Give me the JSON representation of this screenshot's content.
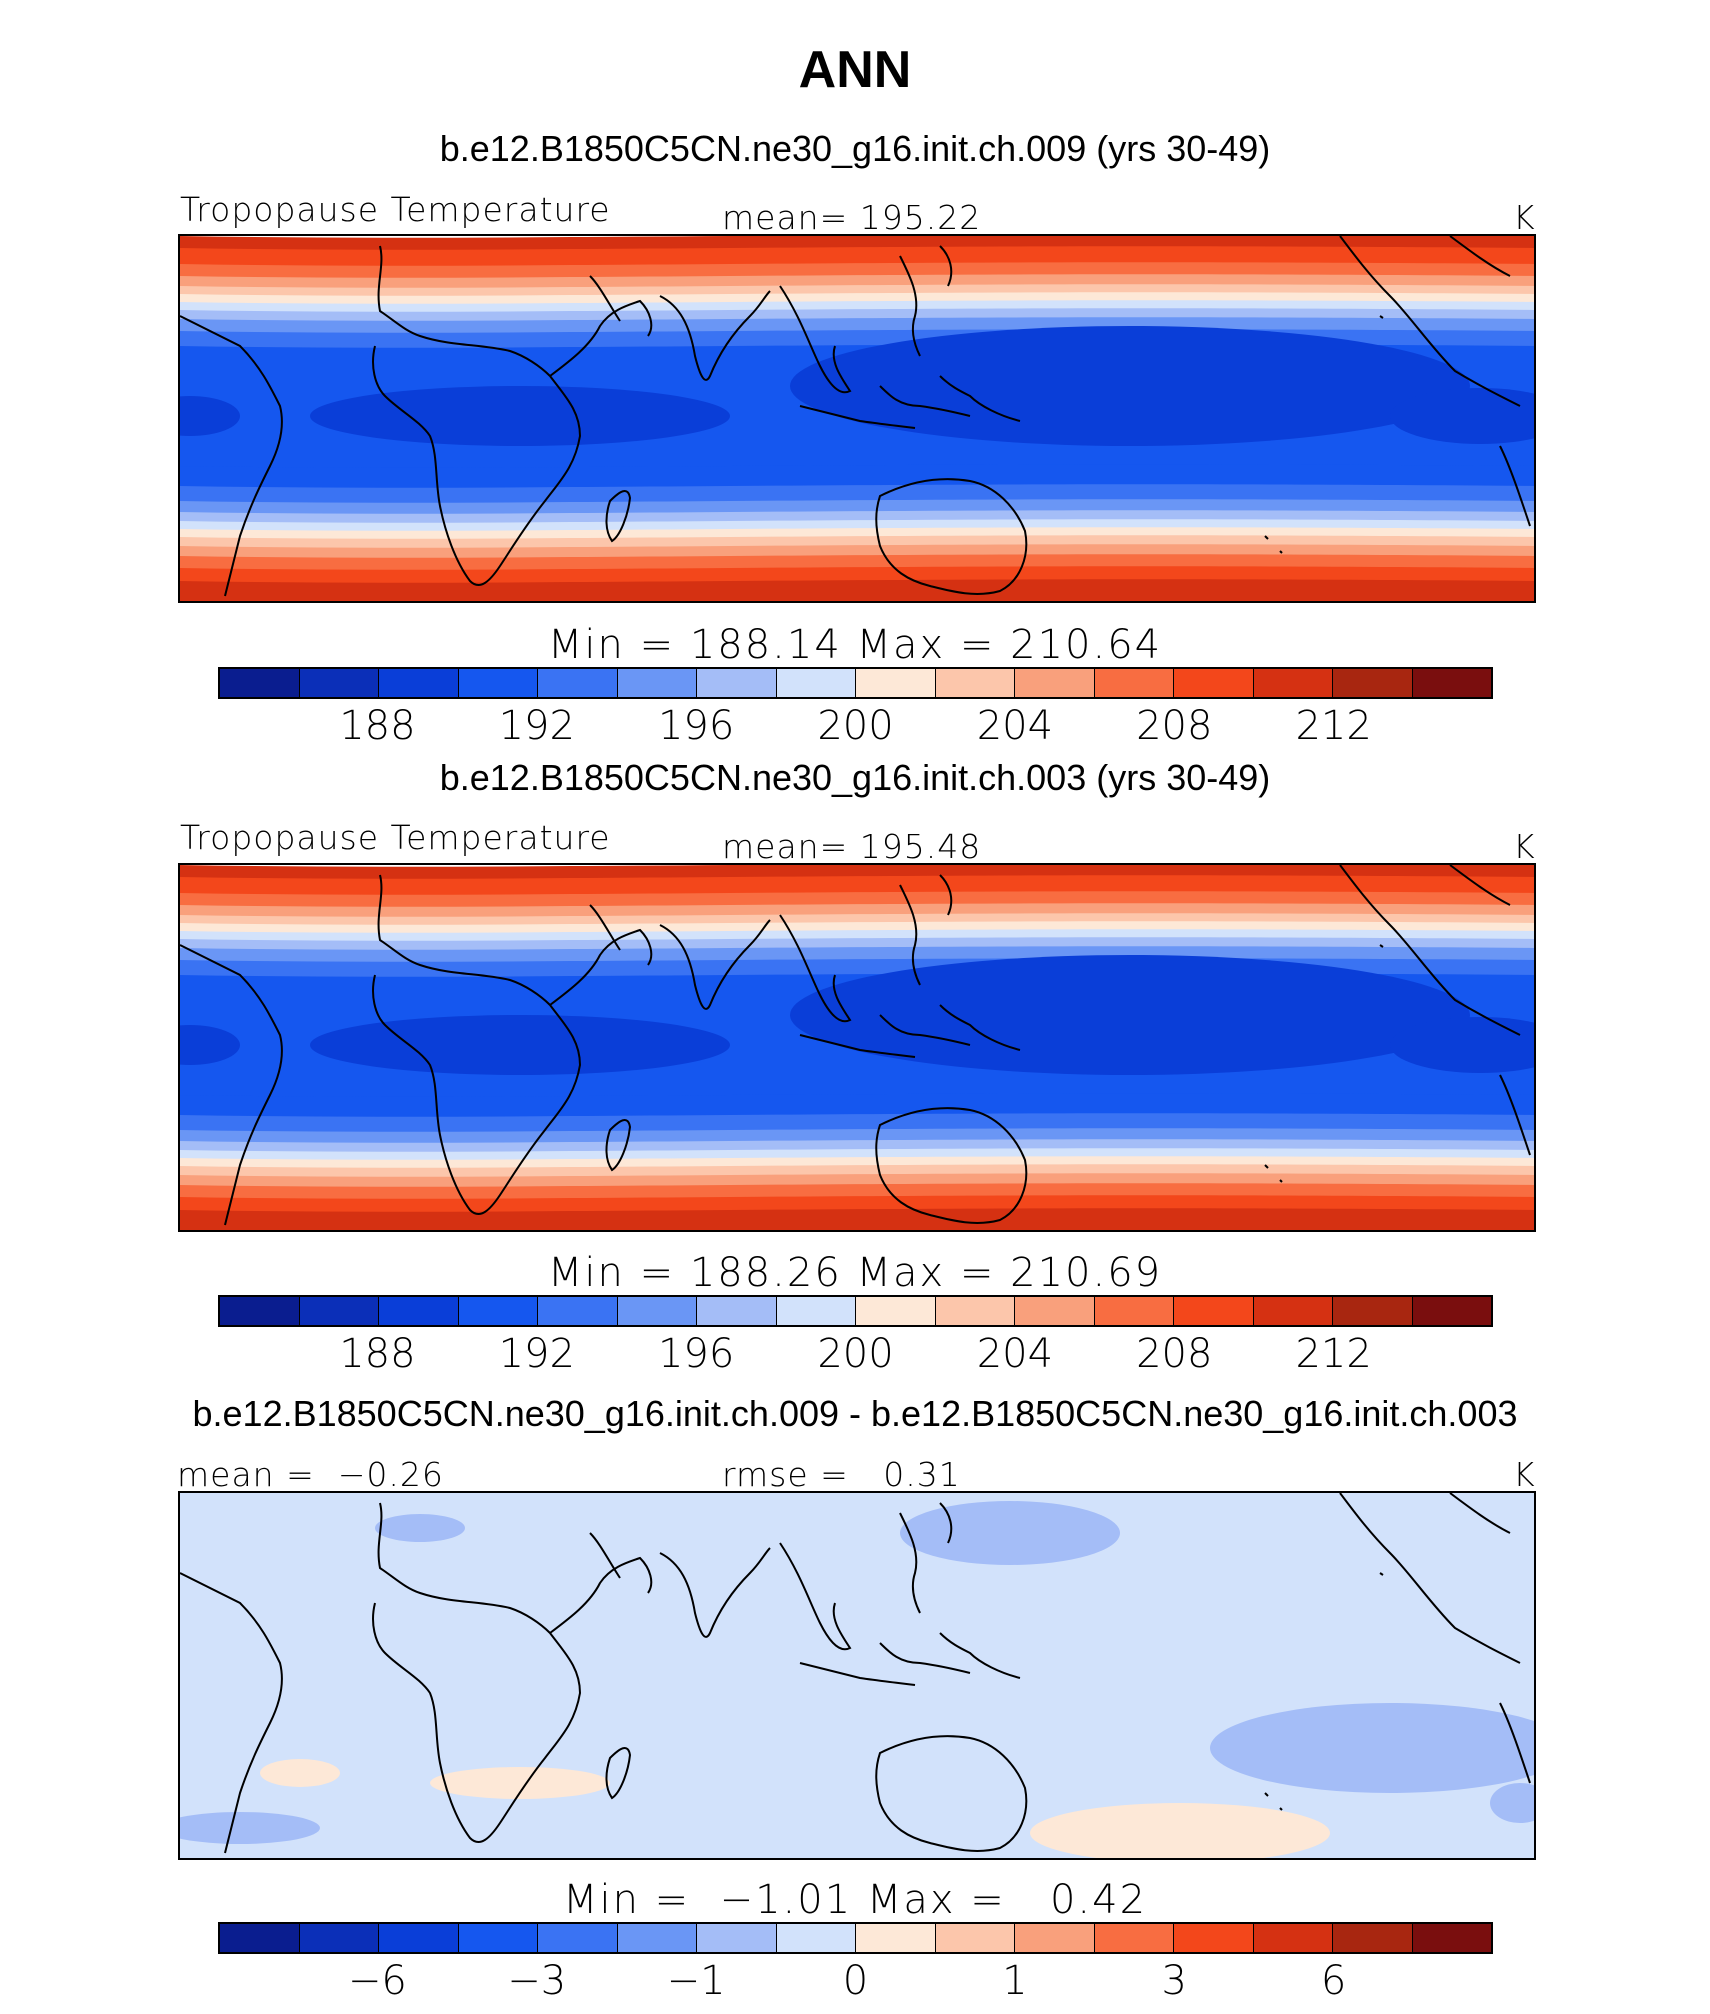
{
  "figure": {
    "title": "ANN",
    "colors": [
      "#0a1d8f",
      "#0b2fb8",
      "#0a3ed8",
      "#1557ef",
      "#3a73f3",
      "#6a96f5",
      "#a4bdf7",
      "#d2e2fb",
      "#fde8d7",
      "#fcc6ab",
      "#f9a07c",
      "#f86d41",
      "#f3471b",
      "#d53112",
      "#a82610",
      "#7a0e0e"
    ]
  },
  "chart_data": [
    {
      "type": "heatmap",
      "case_title": "b.e12.B1850C5CN.ne30_g16.init.ch.009 (yrs 30-49)",
      "variable": "Tropopause Temperature",
      "mean_label": "mean=",
      "mean": "195.22",
      "units": "K",
      "min_label": "Min",
      "max_label": "Max",
      "min": "188.14",
      "max": "210.64",
      "colorbar_ticks": [
        "188",
        "192",
        "196",
        "200",
        "204",
        "208",
        "212"
      ],
      "pattern": "abs"
    },
    {
      "type": "heatmap",
      "case_title": "b.e12.B1850C5CN.ne30_g16.init.ch.003 (yrs 30-49)",
      "variable": "Tropopause Temperature",
      "mean_label": "mean=",
      "mean": "195.48",
      "units": "K",
      "min_label": "Min",
      "max_label": "Max",
      "min": "188.26",
      "max": "210.69",
      "colorbar_ticks": [
        "188",
        "192",
        "196",
        "200",
        "204",
        "208",
        "212"
      ],
      "pattern": "abs"
    },
    {
      "type": "heatmap",
      "case_title": "b.e12.B1850C5CN.ne30_g16.init.ch.009 - b.e12.B1850C5CN.ne30_g16.init.ch.003",
      "mean_label": "mean =",
      "mean": "−0.26",
      "rmse_label": "rmse =",
      "rmse": "0.31",
      "units": "K",
      "min_label": "Min =",
      "max_label": "Max =",
      "min": "−1.01",
      "max": "0.42",
      "colorbar_ticks": [
        "−6",
        "−3",
        "−1",
        "0",
        "1",
        "3",
        "6"
      ],
      "pattern": "diff"
    }
  ]
}
